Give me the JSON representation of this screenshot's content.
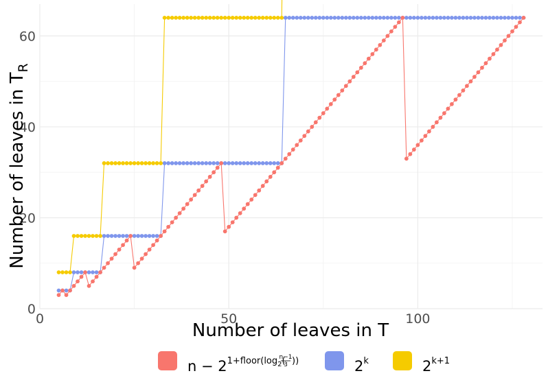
{
  "chart_data": {
    "type": "line",
    "xlabel": "Number of leaves in T",
    "ylabel": "Number of leaves in T",
    "ylabel_sub": "R",
    "xlim": [
      0,
      133
    ],
    "ylim": [
      0,
      67
    ],
    "x_ticks": [
      0,
      50,
      100
    ],
    "y_ticks": [
      0,
      20,
      40,
      60
    ],
    "grid": true,
    "legend_position": "bottom",
    "x": [
      5,
      128
    ],
    "series": [
      {
        "name": "n − 2^(1+floor(log2((n−1)/3)))",
        "color": "#F8766D",
        "formula": "n - 2^(1+floor(log2((n-1)/3)))",
        "legend_parts": {
          "n": "n",
          "minus": " − ",
          "base": "2",
          "exp": "1+floor(log",
          "exp_sub": "2",
          "exp_open": "(",
          "frac_num": "n−1",
          "frac_den": "3",
          "exp_close": "))"
        }
      },
      {
        "name": "2^k",
        "color": "#7F96EC",
        "formula": "2^floor(log2(n-1))",
        "legend_parts": {
          "base": "2",
          "exp": "k"
        }
      },
      {
        "name": "2^(k+1)",
        "color": "#F5CB00",
        "formula": "2^(floor(log2(n-1))+1)",
        "legend_parts": {
          "base": "2",
          "exp": "k+1"
        }
      }
    ]
  }
}
